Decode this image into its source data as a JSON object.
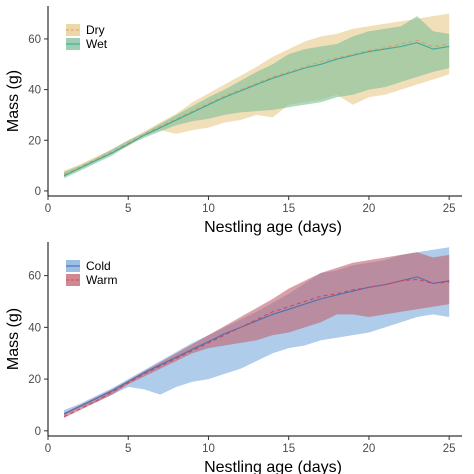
{
  "chart_data": [
    {
      "type": "line",
      "xlabel": "Nestling age (days)",
      "ylabel": "Mass (g)",
      "xlim": [
        0,
        25.8
      ],
      "ylim": [
        -2,
        73
      ],
      "xticks": [
        0,
        5,
        10,
        15,
        20,
        25
      ],
      "yticks": [
        0,
        20,
        40,
        60
      ],
      "grid": false,
      "legend_position": "top-left",
      "series": [
        {
          "name": "Dry",
          "line_color": "#d9a066",
          "fill_color": "#e8c98a",
          "dash": "dashed",
          "x": [
            1,
            2,
            3,
            4,
            5,
            6,
            7,
            8,
            9,
            10,
            11,
            12,
            13,
            14,
            15,
            16,
            17,
            18,
            19,
            20,
            21,
            22,
            23,
            24,
            25
          ],
          "mean": [
            6.5,
            9.5,
            12.5,
            15.5,
            19,
            22.5,
            25.5,
            28.5,
            31.5,
            34.5,
            37.5,
            40,
            42.5,
            45,
            47,
            49,
            51,
            52.5,
            54,
            55.5,
            56.5,
            58,
            59.5,
            57,
            58
          ],
          "lower": [
            5.5,
            9,
            12,
            15,
            17.5,
            22,
            24,
            22.5,
            24,
            25,
            27,
            28,
            30,
            29,
            34,
            35,
            36,
            38,
            34,
            37,
            38,
            40,
            42,
            44,
            46
          ],
          "upper": [
            8,
            10.5,
            13.5,
            16.5,
            20,
            23.5,
            27,
            30.5,
            35,
            38.5,
            42,
            45.5,
            49,
            53,
            56,
            59,
            61,
            62,
            64,
            65,
            66,
            67,
            68,
            69,
            70
          ]
        },
        {
          "name": "Wet",
          "line_color": "#3fa89b",
          "fill_color": "#7dbf98",
          "dash": "solid",
          "x": [
            1,
            2,
            3,
            4,
            5,
            6,
            7,
            8,
            9,
            10,
            11,
            12,
            13,
            14,
            15,
            16,
            17,
            18,
            19,
            20,
            21,
            22,
            23,
            24,
            25
          ],
          "mean": [
            6,
            9,
            12,
            15,
            18.5,
            22,
            25,
            28,
            31,
            34,
            37,
            39.5,
            42,
            44.5,
            46.5,
            48.5,
            50,
            52,
            53.5,
            55,
            56,
            57,
            58.5,
            56,
            57
          ],
          "lower": [
            5,
            8,
            11,
            14,
            18,
            21,
            23.5,
            26,
            27.5,
            28.5,
            30,
            31,
            31.5,
            32,
            33,
            34,
            35,
            37,
            38,
            40,
            41,
            43,
            45,
            47,
            48.5
          ],
          "upper": [
            7.5,
            10,
            13,
            16.5,
            20,
            23,
            26.5,
            30,
            33.5,
            37,
            40,
            43.5,
            47,
            50,
            54,
            56,
            57,
            58,
            61,
            63,
            64,
            65,
            69,
            63,
            62
          ]
        }
      ]
    },
    {
      "type": "line",
      "xlabel": "Nestling age (days)",
      "ylabel": "Mass (g)",
      "xlim": [
        0,
        25.8
      ],
      "ylim": [
        -2,
        73
      ],
      "xticks": [
        0,
        5,
        10,
        15,
        20,
        25
      ],
      "yticks": [
        0,
        20,
        40,
        60
      ],
      "grid": false,
      "legend_position": "top-left",
      "series": [
        {
          "name": "Cold",
          "line_color": "#4a6fb5",
          "fill_color": "#7aaadc",
          "dash": "solid",
          "x": [
            1,
            2,
            3,
            4,
            5,
            6,
            7,
            8,
            9,
            10,
            11,
            12,
            13,
            14,
            15,
            16,
            17,
            18,
            19,
            20,
            21,
            22,
            23,
            24,
            25
          ],
          "mean": [
            6.5,
            9.5,
            12.5,
            15.5,
            19,
            22.5,
            25.5,
            28.5,
            31.5,
            34.5,
            37.5,
            40,
            42.5,
            45,
            47,
            49,
            51,
            52.5,
            54,
            55.5,
            56.5,
            58,
            59.5,
            57,
            58
          ],
          "lower": [
            6,
            9,
            11,
            14,
            17,
            16,
            14,
            17,
            19,
            20,
            22,
            24,
            27,
            30,
            32,
            33,
            35,
            36,
            37,
            38,
            40,
            42,
            44,
            45,
            44
          ],
          "upper": [
            8,
            10.5,
            13.5,
            16.5,
            20,
            23.5,
            27,
            30.5,
            34,
            37,
            40,
            43,
            46,
            49.5,
            53,
            57,
            61,
            62,
            64,
            65,
            66,
            68,
            69,
            70,
            71
          ]
        },
        {
          "name": "Warm",
          "line_color": "#cc4a5a",
          "fill_color": "#c0606e",
          "dash": "dashed",
          "x": [
            1,
            2,
            3,
            4,
            5,
            6,
            7,
            8,
            9,
            10,
            11,
            12,
            13,
            14,
            15,
            16,
            17,
            18,
            19,
            20,
            21,
            22,
            23,
            24,
            25
          ],
          "mean": [
            5.5,
            8.5,
            11.5,
            15,
            18.5,
            22,
            25,
            28,
            31,
            34,
            37,
            40,
            43,
            46,
            48,
            50,
            52,
            53,
            54.5,
            55.5,
            56.5,
            58,
            58.5,
            57,
            57.5
          ],
          "lower": [
            5,
            8,
            11,
            14,
            18,
            21,
            24,
            27,
            30,
            32,
            33,
            34,
            35,
            37,
            38,
            40,
            42,
            45,
            45,
            44,
            45,
            46,
            47,
            48,
            49
          ],
          "upper": [
            7,
            10,
            13,
            16,
            19.5,
            23,
            26.5,
            30,
            33.5,
            37,
            40.5,
            44,
            47.5,
            51,
            55,
            58,
            61,
            63,
            65,
            66,
            67,
            68,
            69,
            67,
            68
          ]
        }
      ]
    }
  ]
}
